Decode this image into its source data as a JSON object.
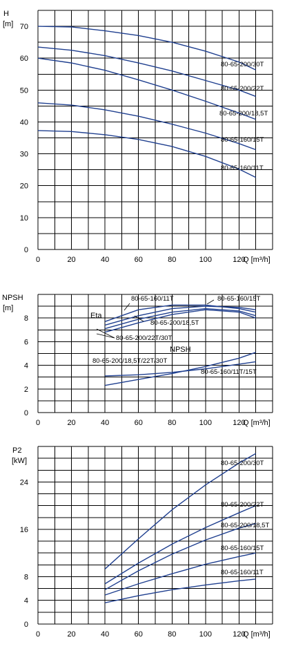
{
  "colors": {
    "curve": "#1f3f8f",
    "grid": "#000000"
  },
  "chart_data": [
    {
      "type": "line",
      "ylabel": "H",
      "yunit": "[m]",
      "xlabel": "Q [m³/h]",
      "xlim": [
        0,
        140
      ],
      "ylim": [
        0,
        75
      ],
      "xticks": [
        "0",
        "20",
        "40",
        "60",
        "80",
        "100",
        "120"
      ],
      "yticks": [
        "0",
        "10",
        "20",
        "30",
        "40",
        "50",
        "60",
        "70"
      ],
      "series": [
        {
          "name": "80-65-200/30T",
          "x": [
            0,
            20,
            40,
            60,
            80,
            100,
            120,
            130
          ],
          "y": [
            70,
            69.8,
            68.6,
            67.1,
            65,
            62.2,
            58.8,
            56.3
          ]
        },
        {
          "name": "80-65-200/22T",
          "x": [
            0,
            20,
            40,
            60,
            80,
            100,
            120,
            130
          ],
          "y": [
            63.5,
            62.5,
            60.8,
            58.5,
            56,
            53,
            50,
            48
          ]
        },
        {
          "name": "80-65-200/18,5T",
          "x": [
            0,
            20,
            40,
            60,
            80,
            100,
            120,
            130
          ],
          "y": [
            60,
            58.5,
            56.2,
            53.2,
            50,
            46.5,
            42.8,
            40.8
          ]
        },
        {
          "name": "80-65-160/15T",
          "x": [
            0,
            20,
            40,
            60,
            80,
            100,
            120,
            130
          ],
          "y": [
            46,
            45.3,
            43.8,
            41.8,
            39.3,
            36.5,
            33.2,
            31.3
          ]
        },
        {
          "name": "80-65-160/11T",
          "x": [
            0,
            20,
            40,
            60,
            80,
            100,
            120,
            130
          ],
          "y": [
            37.3,
            37,
            36,
            34.5,
            32.3,
            29.2,
            25.2,
            22.6
          ]
        }
      ]
    },
    {
      "type": "line",
      "ylabel": "NPSH",
      "yunit": "[m]",
      "xlabel": "Q [m³/h]",
      "xlim": [
        0,
        140
      ],
      "ylim": [
        0,
        10
      ],
      "xticks": [
        "0",
        "20",
        "40",
        "60",
        "80",
        "100",
        "120"
      ],
      "yticks": [
        "0",
        "2",
        "4",
        "6",
        "8"
      ],
      "annotations": [
        "Eta",
        "NPSH"
      ],
      "eta_series": [
        {
          "name": "80-65-160/11T",
          "x": [
            40,
            60,
            80,
            100,
            120,
            130
          ],
          "y": [
            7.7,
            8.7,
            9.1,
            9.1,
            8.8,
            8.5
          ]
        },
        {
          "name": "80-65-160/15T",
          "x": [
            40,
            60,
            80,
            100,
            120,
            130
          ],
          "y": [
            7.4,
            8.2,
            8.8,
            9.0,
            8.9,
            8.7
          ]
        },
        {
          "name": "80-65-200/18,5T",
          "x": [
            40,
            60,
            80,
            100,
            120,
            130
          ],
          "y": [
            7.1,
            7.9,
            8.5,
            8.8,
            8.6,
            8.2
          ]
        },
        {
          "name": "80-65-200/22T/30T",
          "x": [
            40,
            60,
            80,
            100,
            120,
            130
          ],
          "y": [
            6.8,
            7.6,
            8.3,
            8.7,
            8.5,
            8.0
          ]
        }
      ],
      "npsh_series": [
        {
          "name": "80-65-200/18,5T/22T/30T",
          "x": [
            40,
            60,
            80,
            100,
            120,
            130
          ],
          "y": [
            3.1,
            3.2,
            3.4,
            3.7,
            4.1,
            4.3
          ]
        },
        {
          "name": "80-65-160/11T/15T",
          "x": [
            40,
            60,
            80,
            100,
            120,
            130
          ],
          "y": [
            2.3,
            2.8,
            3.3,
            3.9,
            4.6,
            5.1
          ]
        }
      ],
      "labels": [
        "80-65-160/11T",
        "80-65-160/15T",
        "80-65-200/18,5T",
        "80-65-200/22T/30T",
        "80-65-200/18,5T/22T/30T",
        "80-65-160/11T/15T"
      ]
    },
    {
      "type": "line",
      "ylabel": "P2",
      "yunit": "[kW]",
      "xlabel": "Q [m³/h]",
      "xlim": [
        0,
        140
      ],
      "ylim": [
        0,
        30
      ],
      "xticks": [
        "0",
        "20",
        "40",
        "60",
        "80",
        "100",
        "120"
      ],
      "yticks": [
        "0",
        "4",
        "8",
        "16",
        "24"
      ],
      "ytick_values": [
        0,
        4,
        8,
        16,
        24
      ],
      "series": [
        {
          "name": "80-65-200/30T",
          "x": [
            40,
            60,
            80,
            100,
            120,
            130
          ],
          "y": [
            9.3,
            14.4,
            19.3,
            23.5,
            27.2,
            28.8
          ]
        },
        {
          "name": "80-65-200/22T",
          "x": [
            40,
            60,
            80,
            100,
            120,
            130
          ],
          "y": [
            6.8,
            10.3,
            13.5,
            16.3,
            18.8,
            20.0
          ]
        },
        {
          "name": "80-65-200/18,5T",
          "x": [
            40,
            60,
            80,
            100,
            120,
            130
          ],
          "y": [
            5.8,
            9.0,
            11.8,
            14.2,
            16.2,
            17.0
          ]
        },
        {
          "name": "80-65-160/15T",
          "x": [
            40,
            60,
            80,
            100,
            120,
            130
          ],
          "y": [
            4.9,
            6.8,
            8.5,
            10.1,
            11.4,
            12.0
          ]
        },
        {
          "name": "80-65-160/11T",
          "x": [
            40,
            60,
            80,
            100,
            120,
            130
          ],
          "y": [
            3.6,
            4.8,
            5.8,
            6.6,
            7.3,
            7.6
          ]
        }
      ]
    }
  ]
}
